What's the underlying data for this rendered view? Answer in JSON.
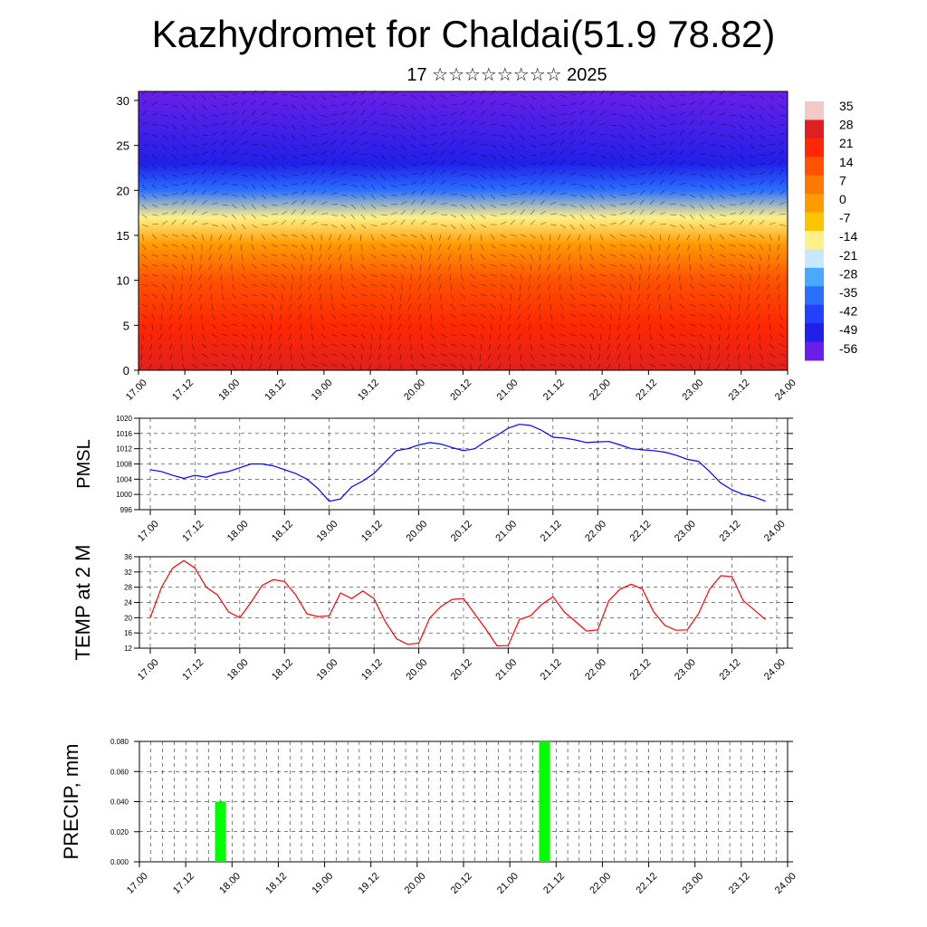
{
  "header": {
    "title": "Kazhydromet for Chaldai(51.9 78.82)",
    "subtitle": "17 ☆☆☆☆☆☆☆☆ 2025"
  },
  "time_ticks": [
    "17.00",
    "17.12",
    "18.00",
    "18.12",
    "19.00",
    "19.12",
    "20.00",
    "20.12",
    "21.00",
    "21.12",
    "22.00",
    "22.12",
    "23.00",
    "23.12",
    "24.00"
  ],
  "chart_data": [
    {
      "type": "heatmap",
      "xlabel": "",
      "ylabel": "",
      "ylim": [
        0,
        31
      ],
      "y_ticks": [
        0,
        5,
        10,
        15,
        20,
        25,
        30
      ],
      "x_ticks": [
        "17.00",
        "17.12",
        "18.00",
        "18.12",
        "19.00",
        "19.12",
        "20.00",
        "20.12",
        "21.00",
        "21.12",
        "22.00",
        "22.12",
        "23.00",
        "23.12",
        "24.00"
      ],
      "colorbar": {
        "labels": [
          "35",
          "28",
          "21",
          "14",
          "7",
          "0",
          "-7",
          "-14",
          "-21",
          "-28",
          "-35",
          "-42",
          "-49",
          "-56"
        ],
        "colors": [
          "#f2c9c9",
          "#e02020",
          "#ff2800",
          "#ff5200",
          "#ff7800",
          "#ff9a00",
          "#ffc400",
          "#fff08a",
          "#c8e8ff",
          "#4aa8ff",
          "#2a70ff",
          "#2440ff",
          "#2020e8",
          "#6a1fe8"
        ]
      },
      "temperature_profile": [
        {
          "level": 0,
          "value": 28
        },
        {
          "level": 5,
          "value": 22
        },
        {
          "level": 10,
          "value": 12
        },
        {
          "level": 14,
          "value": 0
        },
        {
          "level": 17,
          "value": -12
        },
        {
          "level": 20,
          "value": -35
        },
        {
          "level": 23,
          "value": -50
        },
        {
          "level": 31,
          "value": -56
        }
      ],
      "overlay": "wind barbs"
    },
    {
      "type": "line",
      "ylabel": "PMSL",
      "ylim": [
        996,
        1020
      ],
      "y_ticks": [
        996,
        1000,
        1004,
        1008,
        1012,
        1016,
        1020
      ],
      "x_ticks": [
        "17.00",
        "17.12",
        "18.00",
        "18.12",
        "19.00",
        "19.12",
        "20.00",
        "20.12",
        "21.00",
        "21.12",
        "22.00",
        "22.12",
        "23.00",
        "23.12",
        "24.00"
      ],
      "color": "#0000ff",
      "series": [
        {
          "x": [
            0,
            3,
            6,
            9,
            12,
            15,
            18,
            21,
            24,
            27,
            30,
            33,
            36,
            39,
            42,
            45,
            48,
            51,
            54,
            57,
            60,
            63,
            66,
            69,
            72,
            75,
            78,
            81,
            84,
            87,
            90,
            93,
            96,
            99,
            102,
            105,
            108,
            111,
            114,
            117,
            120,
            123,
            126,
            129,
            132,
            135,
            138,
            141,
            144,
            147,
            150,
            153,
            156,
            159,
            162,
            165
          ],
          "values": [
            1006.5,
            1006,
            1005,
            1004.2,
            1005,
            1004.5,
            1005.5,
            1006,
            1007,
            1008,
            1008,
            1007.5,
            1006.5,
            1005.5,
            1004,
            1001.5,
            998.2,
            998.8,
            1002,
            1003.5,
            1005.5,
            1008.5,
            1011.5,
            1012,
            1013,
            1013.6,
            1013.2,
            1012.3,
            1011.5,
            1012,
            1014,
            1015.5,
            1017.4,
            1018.4,
            1018.1,
            1016.8,
            1015,
            1014.8,
            1014.3,
            1013.6,
            1013.8,
            1013.9,
            1013,
            1012,
            1011.7,
            1011.5,
            1011.1,
            1010.3,
            1009.2,
            1008.7,
            1006,
            1003,
            1001.2,
            1000,
            999.3,
            998.2
          ]
        }
      ]
    },
    {
      "type": "line",
      "ylabel": "TEMP at 2 M",
      "ylim": [
        12,
        36
      ],
      "y_ticks": [
        12,
        16,
        20,
        24,
        28,
        32,
        36
      ],
      "x_ticks": [
        "17.00",
        "17.12",
        "18.00",
        "18.12",
        "19.00",
        "19.12",
        "20.00",
        "20.12",
        "21.00",
        "21.12",
        "22.00",
        "22.12",
        "23.00",
        "23.12",
        "24.00"
      ],
      "color": "#ff0000",
      "series": [
        {
          "x": [
            0,
            3,
            6,
            9,
            12,
            15,
            18,
            21,
            24,
            27,
            30,
            33,
            36,
            39,
            42,
            45,
            48,
            51,
            54,
            57,
            60,
            63,
            66,
            69,
            72,
            75,
            78,
            81,
            84,
            87,
            90,
            93,
            96,
            99,
            102,
            105,
            108,
            111,
            114,
            117,
            120,
            123,
            126,
            129,
            132,
            135,
            138,
            141,
            144,
            147,
            150,
            153,
            156,
            159,
            162,
            165
          ],
          "values": [
            20,
            28,
            33,
            35,
            33,
            28,
            26,
            21.5,
            20,
            24,
            28.5,
            30,
            29.5,
            26,
            21,
            20.3,
            20.5,
            26.5,
            25,
            27,
            25,
            19,
            14.5,
            13,
            13.3,
            20,
            23,
            24.8,
            25,
            21,
            17,
            12.6,
            12.7,
            19.5,
            20.5,
            23.5,
            25.5,
            21.5,
            19,
            16.5,
            16.8,
            24.5,
            27.5,
            28.8,
            27.5,
            21.5,
            18,
            16.7,
            16.8,
            21,
            27.5,
            31,
            30.8,
            24.5,
            22,
            19.5
          ]
        }
      ]
    },
    {
      "type": "bar",
      "ylabel": "PRECIP, mm",
      "ylim": [
        0,
        0.08
      ],
      "y_ticks": [
        "0.000",
        "0.020",
        "0.040",
        "0.060",
        "0.080"
      ],
      "x_ticks": [
        "17.00",
        "17.12",
        "18.00",
        "18.12",
        "19.00",
        "19.12",
        "20.00",
        "20.12",
        "21.00",
        "21.12",
        "22.00",
        "22.12",
        "23.00",
        "23.12",
        "24.00"
      ],
      "color": "#00ff00",
      "bars": [
        {
          "x": 21,
          "value": 0.04
        },
        {
          "x": 105,
          "value": 0.08
        }
      ]
    }
  ]
}
